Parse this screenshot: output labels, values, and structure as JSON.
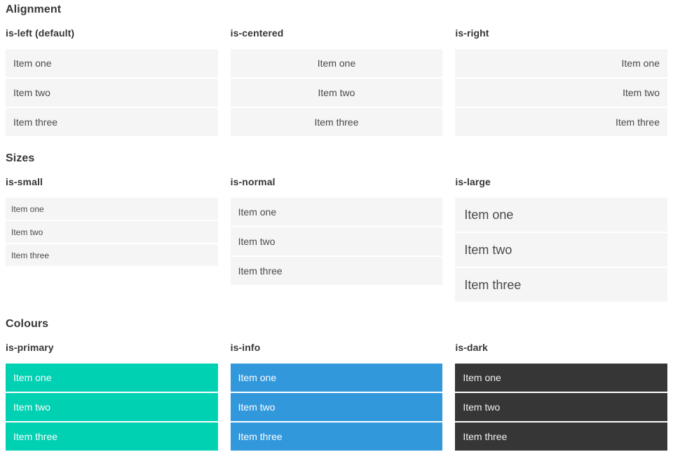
{
  "colors": {
    "primary": "#00d1b2",
    "info": "#3298dc",
    "dark": "#363636",
    "item_background": "#f5f5f5"
  },
  "sections": [
    {
      "title": "Alignment",
      "columns": [
        {
          "heading": "is-left (default)",
          "items": [
            "Item one",
            "Item two",
            "Item three"
          ]
        },
        {
          "heading": "is-centered",
          "items": [
            "Item one",
            "Item two",
            "Item three"
          ]
        },
        {
          "heading": "is-right",
          "items": [
            "Item one",
            "Item two",
            "Item three"
          ]
        }
      ]
    },
    {
      "title": "Sizes",
      "columns": [
        {
          "heading": "is-small",
          "items": [
            "Item one",
            "Item two",
            "Item three"
          ]
        },
        {
          "heading": "is-normal",
          "items": [
            "Item one",
            "Item two",
            "Item three"
          ]
        },
        {
          "heading": "is-large",
          "items": [
            "Item one",
            "Item two",
            "Item three"
          ]
        }
      ]
    },
    {
      "title": "Colours",
      "columns": [
        {
          "heading": "is-primary",
          "items": [
            "Item one",
            "Item two",
            "Item three"
          ]
        },
        {
          "heading": "is-info",
          "items": [
            "Item one",
            "Item two",
            "Item three"
          ]
        },
        {
          "heading": "is-dark",
          "items": [
            "Item one",
            "Item two",
            "Item three"
          ]
        }
      ]
    }
  ]
}
